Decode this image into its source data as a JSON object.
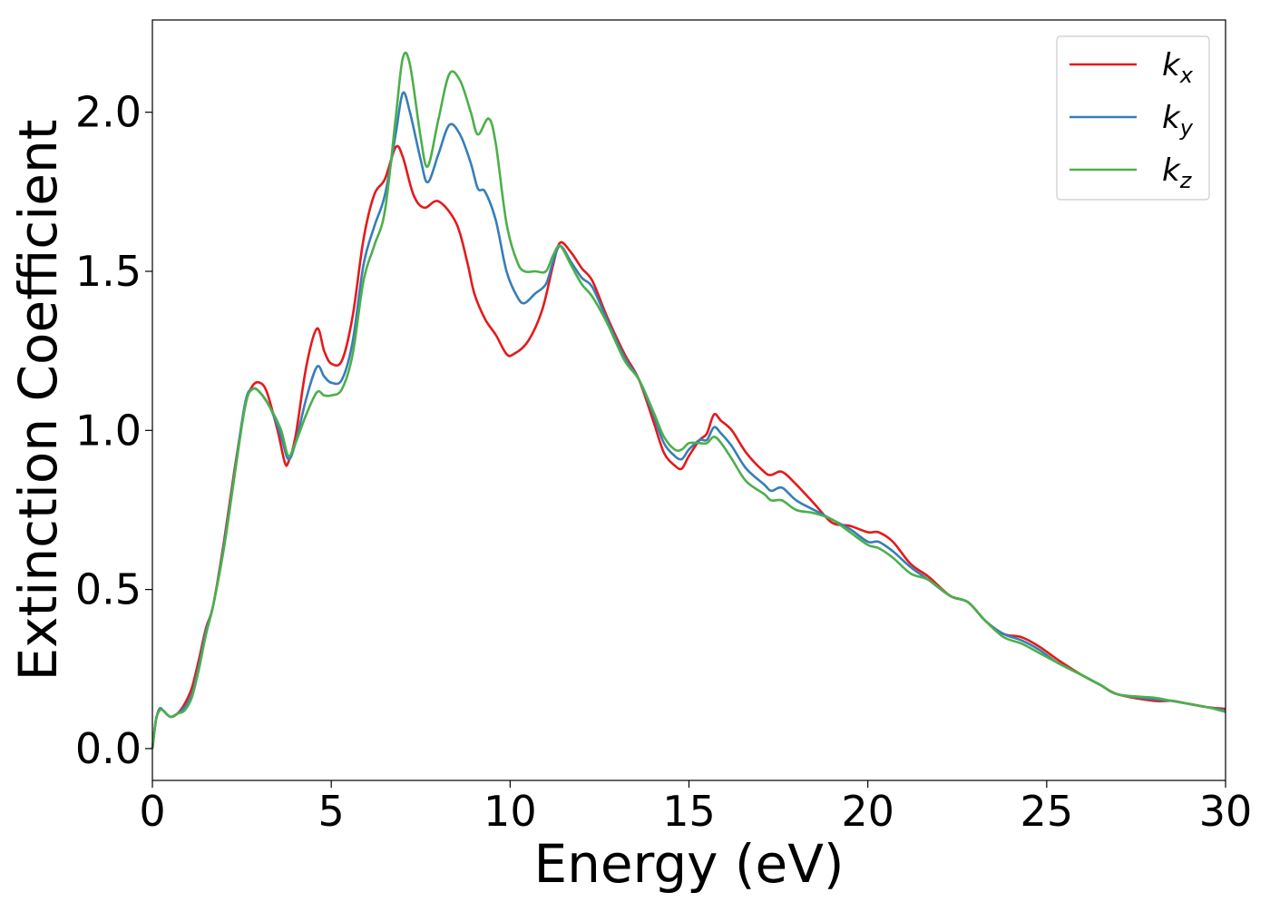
{
  "chart_data": {
    "type": "line",
    "title": "",
    "xlabel": "Energy (eV)",
    "ylabel": "Extinction Coefficient",
    "xlim": [
      0,
      30
    ],
    "ylim": [
      -0.1,
      2.29
    ],
    "xticks": [
      0,
      5,
      10,
      15,
      20,
      25,
      30
    ],
    "xtick_labels": [
      "0",
      "5",
      "10",
      "15",
      "20",
      "25",
      "30"
    ],
    "yticks": [
      0.0,
      0.5,
      1.0,
      1.5,
      2.0
    ],
    "ytick_labels": [
      "0.0",
      "0.5",
      "1.0",
      "1.5",
      "2.0"
    ],
    "grid": false,
    "legend_position": "top-right",
    "series": [
      {
        "base": "k",
        "sub": "x",
        "color": "#e41a1c",
        "points": [
          [
            0,
            0
          ],
          [
            0.1,
            0.09
          ],
          [
            0.2,
            0.125
          ],
          [
            0.3,
            0.12
          ],
          [
            0.5,
            0.1
          ],
          [
            0.7,
            0.11
          ],
          [
            0.9,
            0.14
          ],
          [
            1.1,
            0.19
          ],
          [
            1.3,
            0.28
          ],
          [
            1.5,
            0.38
          ],
          [
            1.7,
            0.45
          ],
          [
            2.0,
            0.65
          ],
          [
            2.3,
            0.88
          ],
          [
            2.6,
            1.08
          ],
          [
            2.8,
            1.14
          ],
          [
            3.0,
            1.15
          ],
          [
            3.2,
            1.12
          ],
          [
            3.5,
            1.0
          ],
          [
            3.7,
            0.9
          ],
          [
            3.8,
            0.9
          ],
          [
            4.0,
            0.98
          ],
          [
            4.3,
            1.2
          ],
          [
            4.6,
            1.32
          ],
          [
            4.8,
            1.25
          ],
          [
            5.0,
            1.21
          ],
          [
            5.3,
            1.22
          ],
          [
            5.6,
            1.36
          ],
          [
            5.9,
            1.6
          ],
          [
            6.2,
            1.74
          ],
          [
            6.5,
            1.79
          ],
          [
            6.8,
            1.89
          ],
          [
            7.0,
            1.86
          ],
          [
            7.3,
            1.74
          ],
          [
            7.6,
            1.7
          ],
          [
            8.0,
            1.72
          ],
          [
            8.5,
            1.65
          ],
          [
            8.8,
            1.53
          ],
          [
            9.0,
            1.43
          ],
          [
            9.3,
            1.35
          ],
          [
            9.6,
            1.3
          ],
          [
            9.9,
            1.24
          ],
          [
            10.1,
            1.24
          ],
          [
            10.5,
            1.28
          ],
          [
            10.9,
            1.38
          ],
          [
            11.2,
            1.52
          ],
          [
            11.4,
            1.59
          ],
          [
            11.7,
            1.56
          ],
          [
            12.0,
            1.51
          ],
          [
            12.3,
            1.47
          ],
          [
            12.7,
            1.36
          ],
          [
            13.2,
            1.24
          ],
          [
            13.6,
            1.16
          ],
          [
            14.0,
            1.03
          ],
          [
            14.3,
            0.93
          ],
          [
            14.6,
            0.89
          ],
          [
            14.8,
            0.88
          ],
          [
            15.0,
            0.92
          ],
          [
            15.3,
            0.97
          ],
          [
            15.5,
            0.99
          ],
          [
            15.7,
            1.05
          ],
          [
            15.9,
            1.03
          ],
          [
            16.2,
            1.0
          ],
          [
            16.6,
            0.93
          ],
          [
            17.1,
            0.87
          ],
          [
            17.3,
            0.86
          ],
          [
            17.6,
            0.87
          ],
          [
            18.0,
            0.83
          ],
          [
            18.5,
            0.77
          ],
          [
            19.0,
            0.71
          ],
          [
            19.5,
            0.7
          ],
          [
            20.0,
            0.68
          ],
          [
            20.3,
            0.68
          ],
          [
            20.7,
            0.65
          ],
          [
            21.2,
            0.58
          ],
          [
            21.7,
            0.54
          ],
          [
            22.3,
            0.48
          ],
          [
            22.8,
            0.46
          ],
          [
            23.3,
            0.4
          ],
          [
            23.8,
            0.36
          ],
          [
            24.3,
            0.35
          ],
          [
            24.8,
            0.32
          ],
          [
            25.3,
            0.28
          ],
          [
            26.0,
            0.23
          ],
          [
            26.5,
            0.2
          ],
          [
            27.0,
            0.17
          ],
          [
            28.0,
            0.15
          ],
          [
            28.5,
            0.15
          ],
          [
            29.0,
            0.14
          ],
          [
            29.5,
            0.13
          ],
          [
            30.0,
            0.125
          ]
        ]
      },
      {
        "base": "k",
        "sub": "y",
        "color": "#377eb8",
        "points": [
          [
            0,
            0
          ],
          [
            0.1,
            0.09
          ],
          [
            0.2,
            0.125
          ],
          [
            0.3,
            0.12
          ],
          [
            0.5,
            0.1
          ],
          [
            0.7,
            0.11
          ],
          [
            0.9,
            0.13
          ],
          [
            1.1,
            0.17
          ],
          [
            1.3,
            0.26
          ],
          [
            1.5,
            0.37
          ],
          [
            1.7,
            0.45
          ],
          [
            2.0,
            0.64
          ],
          [
            2.3,
            0.87
          ],
          [
            2.6,
            1.09
          ],
          [
            2.8,
            1.13
          ],
          [
            3.0,
            1.12
          ],
          [
            3.3,
            1.07
          ],
          [
            3.6,
            0.98
          ],
          [
            3.8,
            0.91
          ],
          [
            4.0,
            0.96
          ],
          [
            4.3,
            1.1
          ],
          [
            4.6,
            1.2
          ],
          [
            4.8,
            1.17
          ],
          [
            5.0,
            1.15
          ],
          [
            5.3,
            1.16
          ],
          [
            5.6,
            1.28
          ],
          [
            5.9,
            1.52
          ],
          [
            6.2,
            1.64
          ],
          [
            6.5,
            1.74
          ],
          [
            6.8,
            1.93
          ],
          [
            7.0,
            2.06
          ],
          [
            7.2,
            2.0
          ],
          [
            7.5,
            1.85
          ],
          [
            7.7,
            1.78
          ],
          [
            8.0,
            1.87
          ],
          [
            8.3,
            1.96
          ],
          [
            8.6,
            1.93
          ],
          [
            8.9,
            1.84
          ],
          [
            9.1,
            1.76
          ],
          [
            9.3,
            1.75
          ],
          [
            9.6,
            1.66
          ],
          [
            9.9,
            1.5
          ],
          [
            10.2,
            1.42
          ],
          [
            10.4,
            1.4
          ],
          [
            10.7,
            1.43
          ],
          [
            11.0,
            1.46
          ],
          [
            11.2,
            1.53
          ],
          [
            11.4,
            1.58
          ],
          [
            11.7,
            1.53
          ],
          [
            12.0,
            1.48
          ],
          [
            12.3,
            1.45
          ],
          [
            12.7,
            1.35
          ],
          [
            13.2,
            1.23
          ],
          [
            13.6,
            1.16
          ],
          [
            14.0,
            1.05
          ],
          [
            14.3,
            0.96
          ],
          [
            14.6,
            0.92
          ],
          [
            14.8,
            0.91
          ],
          [
            15.0,
            0.94
          ],
          [
            15.3,
            0.97
          ],
          [
            15.5,
            0.97
          ],
          [
            15.7,
            1.01
          ],
          [
            15.9,
            0.99
          ],
          [
            16.2,
            0.95
          ],
          [
            16.6,
            0.88
          ],
          [
            17.1,
            0.83
          ],
          [
            17.3,
            0.81
          ],
          [
            17.6,
            0.82
          ],
          [
            18.0,
            0.78
          ],
          [
            18.5,
            0.75
          ],
          [
            19.0,
            0.72
          ],
          [
            19.5,
            0.69
          ],
          [
            20.0,
            0.65
          ],
          [
            20.3,
            0.65
          ],
          [
            20.7,
            0.62
          ],
          [
            21.2,
            0.57
          ],
          [
            21.7,
            0.53
          ],
          [
            22.3,
            0.48
          ],
          [
            22.8,
            0.46
          ],
          [
            23.3,
            0.4
          ],
          [
            23.8,
            0.36
          ],
          [
            24.3,
            0.34
          ],
          [
            24.8,
            0.31
          ],
          [
            25.3,
            0.27
          ],
          [
            26.0,
            0.23
          ],
          [
            26.5,
            0.2
          ],
          [
            27.0,
            0.17
          ],
          [
            28.0,
            0.155
          ],
          [
            28.5,
            0.15
          ],
          [
            29.0,
            0.14
          ],
          [
            29.5,
            0.13
          ],
          [
            30.0,
            0.12
          ]
        ]
      },
      {
        "base": "k",
        "sub": "z",
        "color": "#4daf4a",
        "points": [
          [
            0,
            0
          ],
          [
            0.1,
            0.09
          ],
          [
            0.2,
            0.12
          ],
          [
            0.3,
            0.12
          ],
          [
            0.5,
            0.1
          ],
          [
            0.7,
            0.11
          ],
          [
            0.9,
            0.12
          ],
          [
            1.1,
            0.16
          ],
          [
            1.3,
            0.25
          ],
          [
            1.5,
            0.36
          ],
          [
            1.7,
            0.45
          ],
          [
            2.0,
            0.63
          ],
          [
            2.3,
            0.86
          ],
          [
            2.6,
            1.08
          ],
          [
            2.8,
            1.13
          ],
          [
            3.0,
            1.12
          ],
          [
            3.3,
            1.07
          ],
          [
            3.6,
            1.0
          ],
          [
            3.8,
            0.92
          ],
          [
            4.0,
            0.96
          ],
          [
            4.3,
            1.05
          ],
          [
            4.6,
            1.12
          ],
          [
            4.8,
            1.11
          ],
          [
            5.0,
            1.11
          ],
          [
            5.3,
            1.13
          ],
          [
            5.6,
            1.24
          ],
          [
            5.9,
            1.47
          ],
          [
            6.2,
            1.58
          ],
          [
            6.5,
            1.69
          ],
          [
            6.8,
            1.98
          ],
          [
            7.0,
            2.17
          ],
          [
            7.2,
            2.15
          ],
          [
            7.5,
            1.92
          ],
          [
            7.7,
            1.83
          ],
          [
            8.0,
            1.98
          ],
          [
            8.3,
            2.12
          ],
          [
            8.6,
            2.1
          ],
          [
            8.9,
            2.0
          ],
          [
            9.1,
            1.93
          ],
          [
            9.4,
            1.98
          ],
          [
            9.6,
            1.9
          ],
          [
            9.9,
            1.65
          ],
          [
            10.2,
            1.53
          ],
          [
            10.4,
            1.5
          ],
          [
            10.7,
            1.5
          ],
          [
            11.0,
            1.5
          ],
          [
            11.2,
            1.55
          ],
          [
            11.4,
            1.58
          ],
          [
            11.7,
            1.52
          ],
          [
            12.0,
            1.46
          ],
          [
            12.3,
            1.42
          ],
          [
            12.7,
            1.34
          ],
          [
            13.2,
            1.22
          ],
          [
            13.6,
            1.16
          ],
          [
            14.0,
            1.06
          ],
          [
            14.3,
            0.98
          ],
          [
            14.6,
            0.94
          ],
          [
            14.8,
            0.94
          ],
          [
            15.0,
            0.96
          ],
          [
            15.3,
            0.96
          ],
          [
            15.5,
            0.96
          ],
          [
            15.7,
            0.98
          ],
          [
            15.9,
            0.96
          ],
          [
            16.2,
            0.91
          ],
          [
            16.6,
            0.84
          ],
          [
            17.1,
            0.8
          ],
          [
            17.3,
            0.78
          ],
          [
            17.6,
            0.78
          ],
          [
            18.0,
            0.75
          ],
          [
            18.5,
            0.74
          ],
          [
            19.0,
            0.72
          ],
          [
            19.5,
            0.68
          ],
          [
            20.0,
            0.64
          ],
          [
            20.3,
            0.63
          ],
          [
            20.7,
            0.6
          ],
          [
            21.2,
            0.55
          ],
          [
            21.7,
            0.53
          ],
          [
            22.3,
            0.48
          ],
          [
            22.8,
            0.46
          ],
          [
            23.3,
            0.4
          ],
          [
            23.8,
            0.35
          ],
          [
            24.3,
            0.33
          ],
          [
            24.8,
            0.3
          ],
          [
            25.3,
            0.27
          ],
          [
            26.0,
            0.23
          ],
          [
            26.5,
            0.2
          ],
          [
            27.0,
            0.17
          ],
          [
            28.0,
            0.16
          ],
          [
            28.5,
            0.15
          ],
          [
            29.0,
            0.14
          ],
          [
            29.5,
            0.13
          ],
          [
            30.0,
            0.115
          ]
        ]
      }
    ]
  }
}
